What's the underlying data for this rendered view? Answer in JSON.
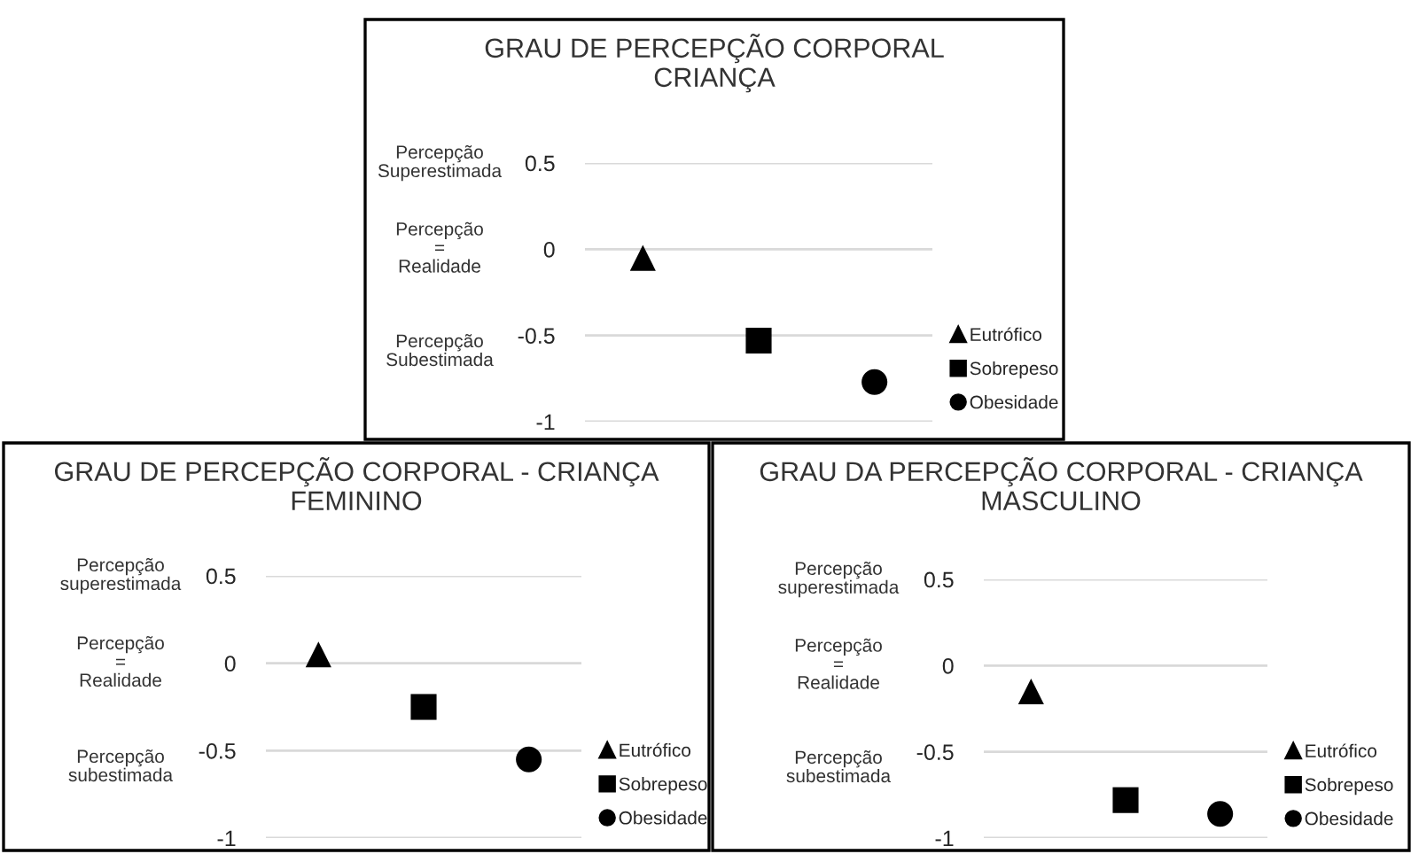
{
  "chart_data": [
    {
      "type": "scatter",
      "title": "GRAU DE PERCEPÇÃO CORPORAL\nCRIANÇA",
      "categories": [
        null,
        null,
        null
      ],
      "ylim": [
        -1,
        0.5
      ],
      "yticks": [
        0.5,
        0,
        -0.5,
        -1
      ],
      "grid": "y",
      "legend": "right",
      "tick_labels": "y",
      "annotations": [
        "Percepção\nSuperestimada",
        "Percepção\n=\nRealidade",
        "Percepção\nSubestimada"
      ],
      "series": [
        {
          "name": "Eutrófico",
          "color": "#000000",
          "marker": "triangle",
          "values": [
            -0.05,
            null,
            null
          ]
        },
        {
          "name": "Sobrepeso",
          "color": "#000000",
          "marker": "square",
          "values": [
            null,
            -0.53,
            null
          ]
        },
        {
          "name": "Obesidade",
          "color": "#000000",
          "marker": "circle",
          "values": [
            null,
            null,
            -0.77
          ]
        }
      ]
    },
    {
      "type": "scatter",
      "title": "GRAU DE PERCEPÇÃO CORPORAL - CRIANÇA\nFEMININO",
      "categories": [
        null,
        null,
        null
      ],
      "ylim": [
        -1,
        0.5
      ],
      "yticks": [
        0.5,
        0,
        -0.5,
        -1
      ],
      "grid": "y",
      "legend": "right",
      "tick_labels": "y",
      "annotations": [
        "Percepção\nsuperestimada",
        "Percepção\n=\nRealidade",
        "Percepção\nsubestimada"
      ],
      "series": [
        {
          "name": "Eutrófico",
          "color": "#000000",
          "marker": "triangle",
          "values": [
            0.05,
            null,
            null
          ]
        },
        {
          "name": "Sobrepeso",
          "color": "#000000",
          "marker": "square",
          "values": [
            null,
            -0.25,
            null
          ]
        },
        {
          "name": "Obesidade",
          "color": "#000000",
          "marker": "circle",
          "values": [
            null,
            null,
            -0.55
          ]
        }
      ]
    },
    {
      "type": "scatter",
      "title": "GRAU DA PERCEPÇÃO CORPORAL - CRIANÇA\nMASCULINO",
      "categories": [
        null,
        null,
        null
      ],
      "ylim": [
        -1,
        0.5
      ],
      "yticks": [
        0.5,
        0,
        -0.5,
        -1
      ],
      "grid": "y",
      "legend": "right",
      "tick_labels": "y",
      "annotations": [
        "Percepção\nsuperestimada",
        "Percepção\n=\nRealidade",
        "Percepção\nsubestimada"
      ],
      "series": [
        {
          "name": "Eutrófico",
          "color": "#000000",
          "marker": "triangle",
          "values": [
            -0.15,
            null,
            null
          ]
        },
        {
          "name": "Sobrepeso",
          "color": "#000000",
          "marker": "square",
          "values": [
            null,
            -0.78,
            null
          ]
        },
        {
          "name": "Obesidade",
          "color": "#000000",
          "marker": "circle",
          "values": [
            null,
            null,
            -0.86
          ]
        }
      ]
    }
  ]
}
